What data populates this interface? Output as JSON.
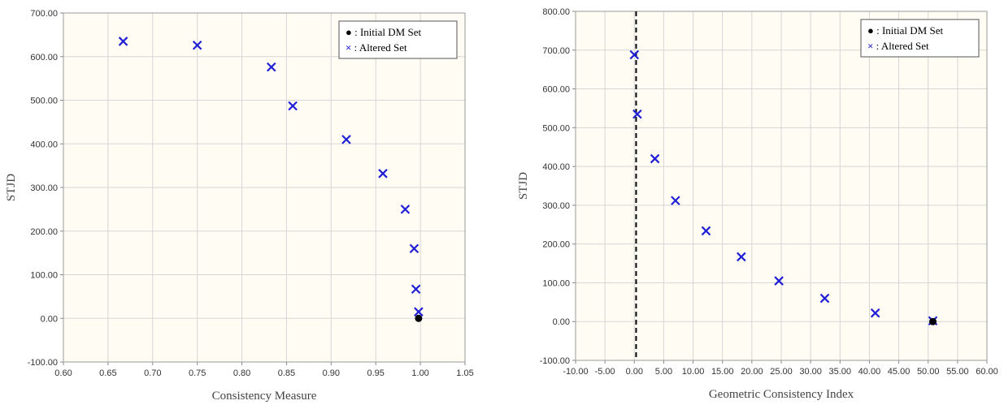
{
  "chart_data": [
    {
      "type": "scatter",
      "xlabel": "Consistency Measure",
      "ylabel": "STJD",
      "xlim": [
        0.6,
        1.05
      ],
      "ylim": [
        -100,
        700
      ],
      "xticks": [
        "0.60",
        "0.65",
        "0.70",
        "0.75",
        "0.80",
        "0.85",
        "0.90",
        "0.95",
        "1.00",
        "1.05"
      ],
      "yticks": [
        "-100.00",
        "0.00",
        "100.00",
        "200.00",
        "300.00",
        "400.00",
        "500.00",
        "600.00",
        "700.00"
      ],
      "grid": true,
      "legend_position": "top-right",
      "legend": [
        "● : Initial  DM Set",
        "× : Altered Set"
      ],
      "series": [
        {
          "name": ": Initial  DM Set",
          "marker": "circle",
          "color": "#000000",
          "points": [
            {
              "x": 0.998,
              "y": 0
            }
          ]
        },
        {
          "name": ": Altered Set",
          "marker": "x",
          "color": "#1f1fd6",
          "points": [
            {
              "x": 0.667,
              "y": 635
            },
            {
              "x": 0.75,
              "y": 626
            },
            {
              "x": 0.833,
              "y": 576
            },
            {
              "x": 0.857,
              "y": 487
            },
            {
              "x": 0.917,
              "y": 410
            },
            {
              "x": 0.958,
              "y": 332
            },
            {
              "x": 0.983,
              "y": 250
            },
            {
              "x": 0.993,
              "y": 160
            },
            {
              "x": 0.995,
              "y": 67
            },
            {
              "x": 0.998,
              "y": 15
            }
          ]
        }
      ]
    },
    {
      "type": "scatter",
      "xlabel": "Geometric Consistency Index",
      "ylabel": "STJD",
      "xlim": [
        -10,
        60
      ],
      "ylim": [
        -100,
        800
      ],
      "xticks": [
        "-10.00",
        "-5.00",
        "0.00",
        "5.00",
        "10.00",
        "15.00",
        "20.00",
        "25.00",
        "30.00",
        "35.00",
        "40.00",
        "45.00",
        "50.00",
        "55.00",
        "60.00"
      ],
      "yticks": [
        "-100.00",
        "0.00",
        "100.00",
        "200.00",
        "300.00",
        "400.00",
        "500.00",
        "600.00",
        "700.00",
        "800.00"
      ],
      "grid": true,
      "legend_position": "top-right",
      "legend": [
        "● : Initial  DM Set",
        "× : Altered Set"
      ],
      "vertical_line": {
        "x": 0.3,
        "style": "dashed",
        "color": "#000000"
      },
      "series": [
        {
          "name": ": Initial  DM Set",
          "marker": "circle",
          "color": "#000000",
          "points": [
            {
              "x": 50.8,
              "y": 0
            }
          ]
        },
        {
          "name": ": Altered Set",
          "marker": "x",
          "color": "#1f1fd6",
          "points": [
            {
              "x": 0,
              "y": 688
            },
            {
              "x": 0.5,
              "y": 535
            },
            {
              "x": 3.5,
              "y": 420
            },
            {
              "x": 7,
              "y": 312
            },
            {
              "x": 12.2,
              "y": 234
            },
            {
              "x": 18.2,
              "y": 167
            },
            {
              "x": 24.6,
              "y": 105
            },
            {
              "x": 32.4,
              "y": 60
            },
            {
              "x": 41,
              "y": 22
            },
            {
              "x": 50.8,
              "y": 2
            }
          ]
        }
      ]
    }
  ]
}
